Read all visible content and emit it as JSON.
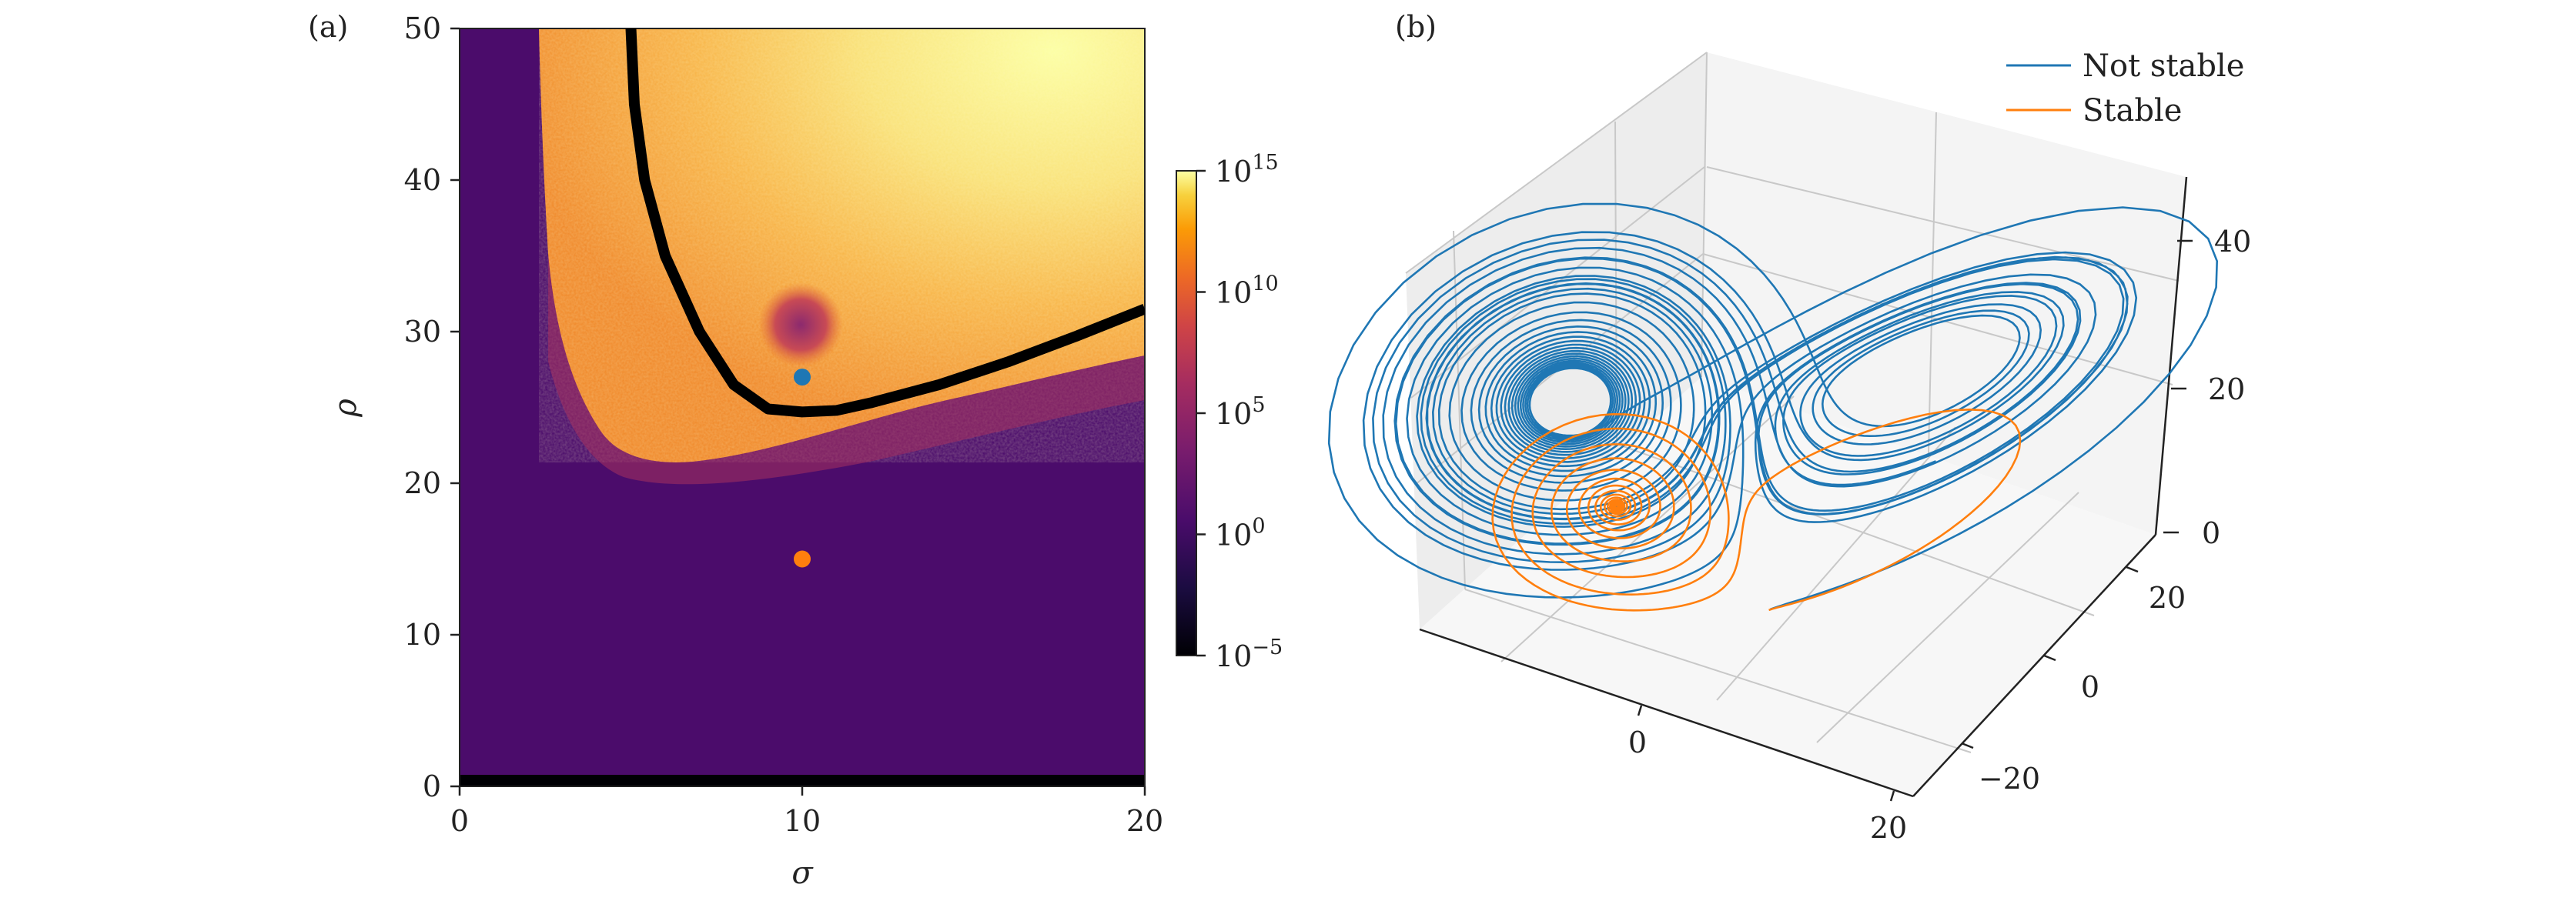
{
  "chart_data": [
    {
      "type": "heatmap",
      "panel_label": "(a)",
      "xlabel": "σ",
      "ylabel": "ρ",
      "xlim": [
        0,
        20
      ],
      "ylim": [
        0,
        50
      ],
      "x_ticks": [
        "0",
        "10",
        "20"
      ],
      "y_ticks": [
        "0",
        "10",
        "20",
        "30",
        "40",
        "50"
      ],
      "colormap": "inferno",
      "color_scale": "log",
      "colorbar": {
        "range": [
          1e-05,
          1000000000000000.0
        ],
        "ticks": [
          {
            "base": "10",
            "exp": "−5"
          },
          {
            "base": "10",
            "exp": "0"
          },
          {
            "base": "10",
            "exp": "5"
          },
          {
            "base": "10",
            "exp": "10"
          },
          {
            "base": "10",
            "exp": "15"
          }
        ]
      },
      "stability_boundary_curve": {
        "color": "#000000",
        "points": [
          [
            5.0,
            50
          ],
          [
            5.1,
            45
          ],
          [
            5.4,
            40
          ],
          [
            6.0,
            35
          ],
          [
            7.0,
            30
          ],
          [
            8.0,
            26.5
          ],
          [
            9.0,
            24.9
          ],
          [
            10.0,
            24.7
          ],
          [
            11.0,
            24.8
          ],
          [
            12.0,
            25.3
          ],
          [
            14.0,
            26.5
          ],
          [
            16.0,
            28.0
          ],
          [
            18.0,
            29.7
          ],
          [
            20.0,
            31.5
          ]
        ]
      },
      "markers": [
        {
          "sigma": 10,
          "rho": 27,
          "color": "#1f77b4"
        },
        {
          "sigma": 10,
          "rho": 15,
          "color": "#ff7f0e"
        }
      ]
    },
    {
      "type": "line3d",
      "panel_label": "(b)",
      "x_ticks": [
        "0",
        "20"
      ],
      "y_ticks": [
        "−20",
        "0",
        "20"
      ],
      "z_ticks": [
        "0",
        "20",
        "40"
      ],
      "legend_position": "top-right",
      "series": [
        {
          "name": "Not stable",
          "color": "#1f77b4"
        },
        {
          "name": "Stable",
          "color": "#ff7f0e"
        }
      ]
    }
  ]
}
